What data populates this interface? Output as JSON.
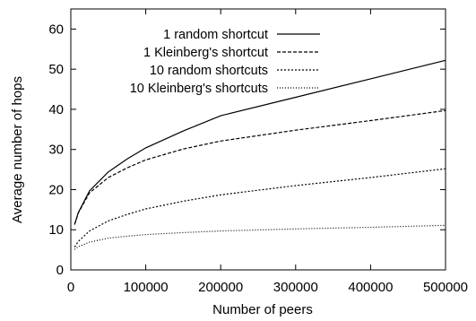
{
  "chart_data": {
    "type": "line",
    "xlabel": "Number of peers",
    "ylabel": "Average number of hops",
    "xlim": [
      0,
      500000
    ],
    "ylim": [
      0,
      65
    ],
    "xticks": [
      0,
      100000,
      200000,
      300000,
      400000,
      500000
    ],
    "yticks": [
      0,
      10,
      20,
      30,
      40,
      50,
      60
    ],
    "xtick_labels": [
      "0",
      "100000",
      "200000",
      "300000",
      "400000",
      "500000"
    ],
    "ytick_labels": [
      "0",
      "10",
      "20",
      "30",
      "40",
      "50",
      "60"
    ],
    "grid": false,
    "legend_position": "top-left",
    "series": [
      {
        "name": "1 random shortcut",
        "dash": "solid",
        "x": [
          5000,
          10000,
          25000,
          50000,
          75000,
          100000,
          150000,
          200000,
          300000,
          400000,
          500000
        ],
        "y": [
          11.3,
          14.3,
          19.7,
          24.4,
          27.6,
          30.4,
          34.6,
          38.4,
          43.0,
          47.6,
          52.2
        ]
      },
      {
        "name": "1 Kleinberg's shortcut",
        "dash": "dashed",
        "x": [
          5000,
          10000,
          25000,
          50000,
          75000,
          100000,
          150000,
          200000,
          300000,
          400000,
          500000
        ],
        "y": [
          11.3,
          14.2,
          19.2,
          23.0,
          25.4,
          27.4,
          30.1,
          32.1,
          34.8,
          37.2,
          39.7
        ]
      },
      {
        "name": "10 random shortcuts",
        "dash": "dotted",
        "x": [
          5000,
          10000,
          25000,
          50000,
          75000,
          100000,
          150000,
          200000,
          300000,
          400000,
          500000
        ],
        "y": [
          5.7,
          7.1,
          9.7,
          12.2,
          13.8,
          15.2,
          17.1,
          18.7,
          21.0,
          23.0,
          25.2
        ]
      },
      {
        "name": "10 Kleinberg's shortcuts",
        "dash": "fine-dotted",
        "x": [
          5000,
          10000,
          25000,
          50000,
          75000,
          100000,
          150000,
          200000,
          300000,
          400000,
          500000
        ],
        "y": [
          5.1,
          5.8,
          6.9,
          7.9,
          8.4,
          8.8,
          9.3,
          9.7,
          10.2,
          10.6,
          11.1
        ]
      }
    ]
  }
}
